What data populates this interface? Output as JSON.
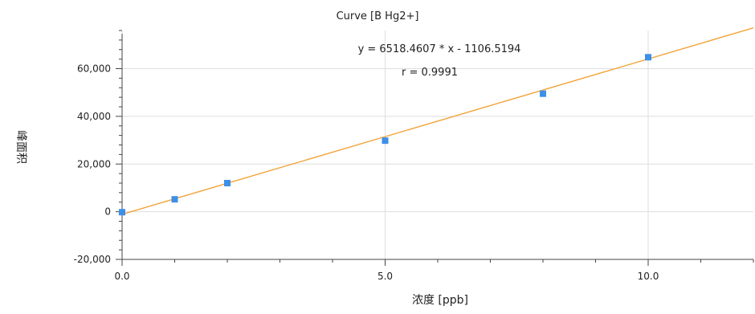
{
  "chart_data": {
    "type": "scatter",
    "title": "Curve [B Hg2+]",
    "xlabel": "浓度 [ppb]",
    "ylabel": "峰面积",
    "xlim": [
      0,
      12
    ],
    "ylim": [
      -20000,
      76000
    ],
    "x_ticks": [
      0,
      5,
      10
    ],
    "x_tick_labels": [
      "0.0",
      "5.0",
      "10.0"
    ],
    "y_ticks": [
      -20000,
      0,
      20000,
      40000,
      60000
    ],
    "y_tick_labels": [
      "-20,000",
      "0",
      "20,000",
      "40,000",
      "60,000"
    ],
    "grid": true,
    "series": [
      {
        "type": "scatter",
        "color": "#3d8fe8",
        "x": [
          0,
          1,
          2,
          5,
          8,
          10
        ],
        "y": [
          -200,
          5200,
          12000,
          29800,
          49500,
          64800
        ]
      },
      {
        "type": "line",
        "color": "#f2a33a",
        "slope": 6518.4607,
        "intercept": -1106.5194
      }
    ],
    "annotations": {
      "equation": "y = 6518.4607 * x  - 1106.5194",
      "r_value": "r = 0.9991"
    }
  }
}
